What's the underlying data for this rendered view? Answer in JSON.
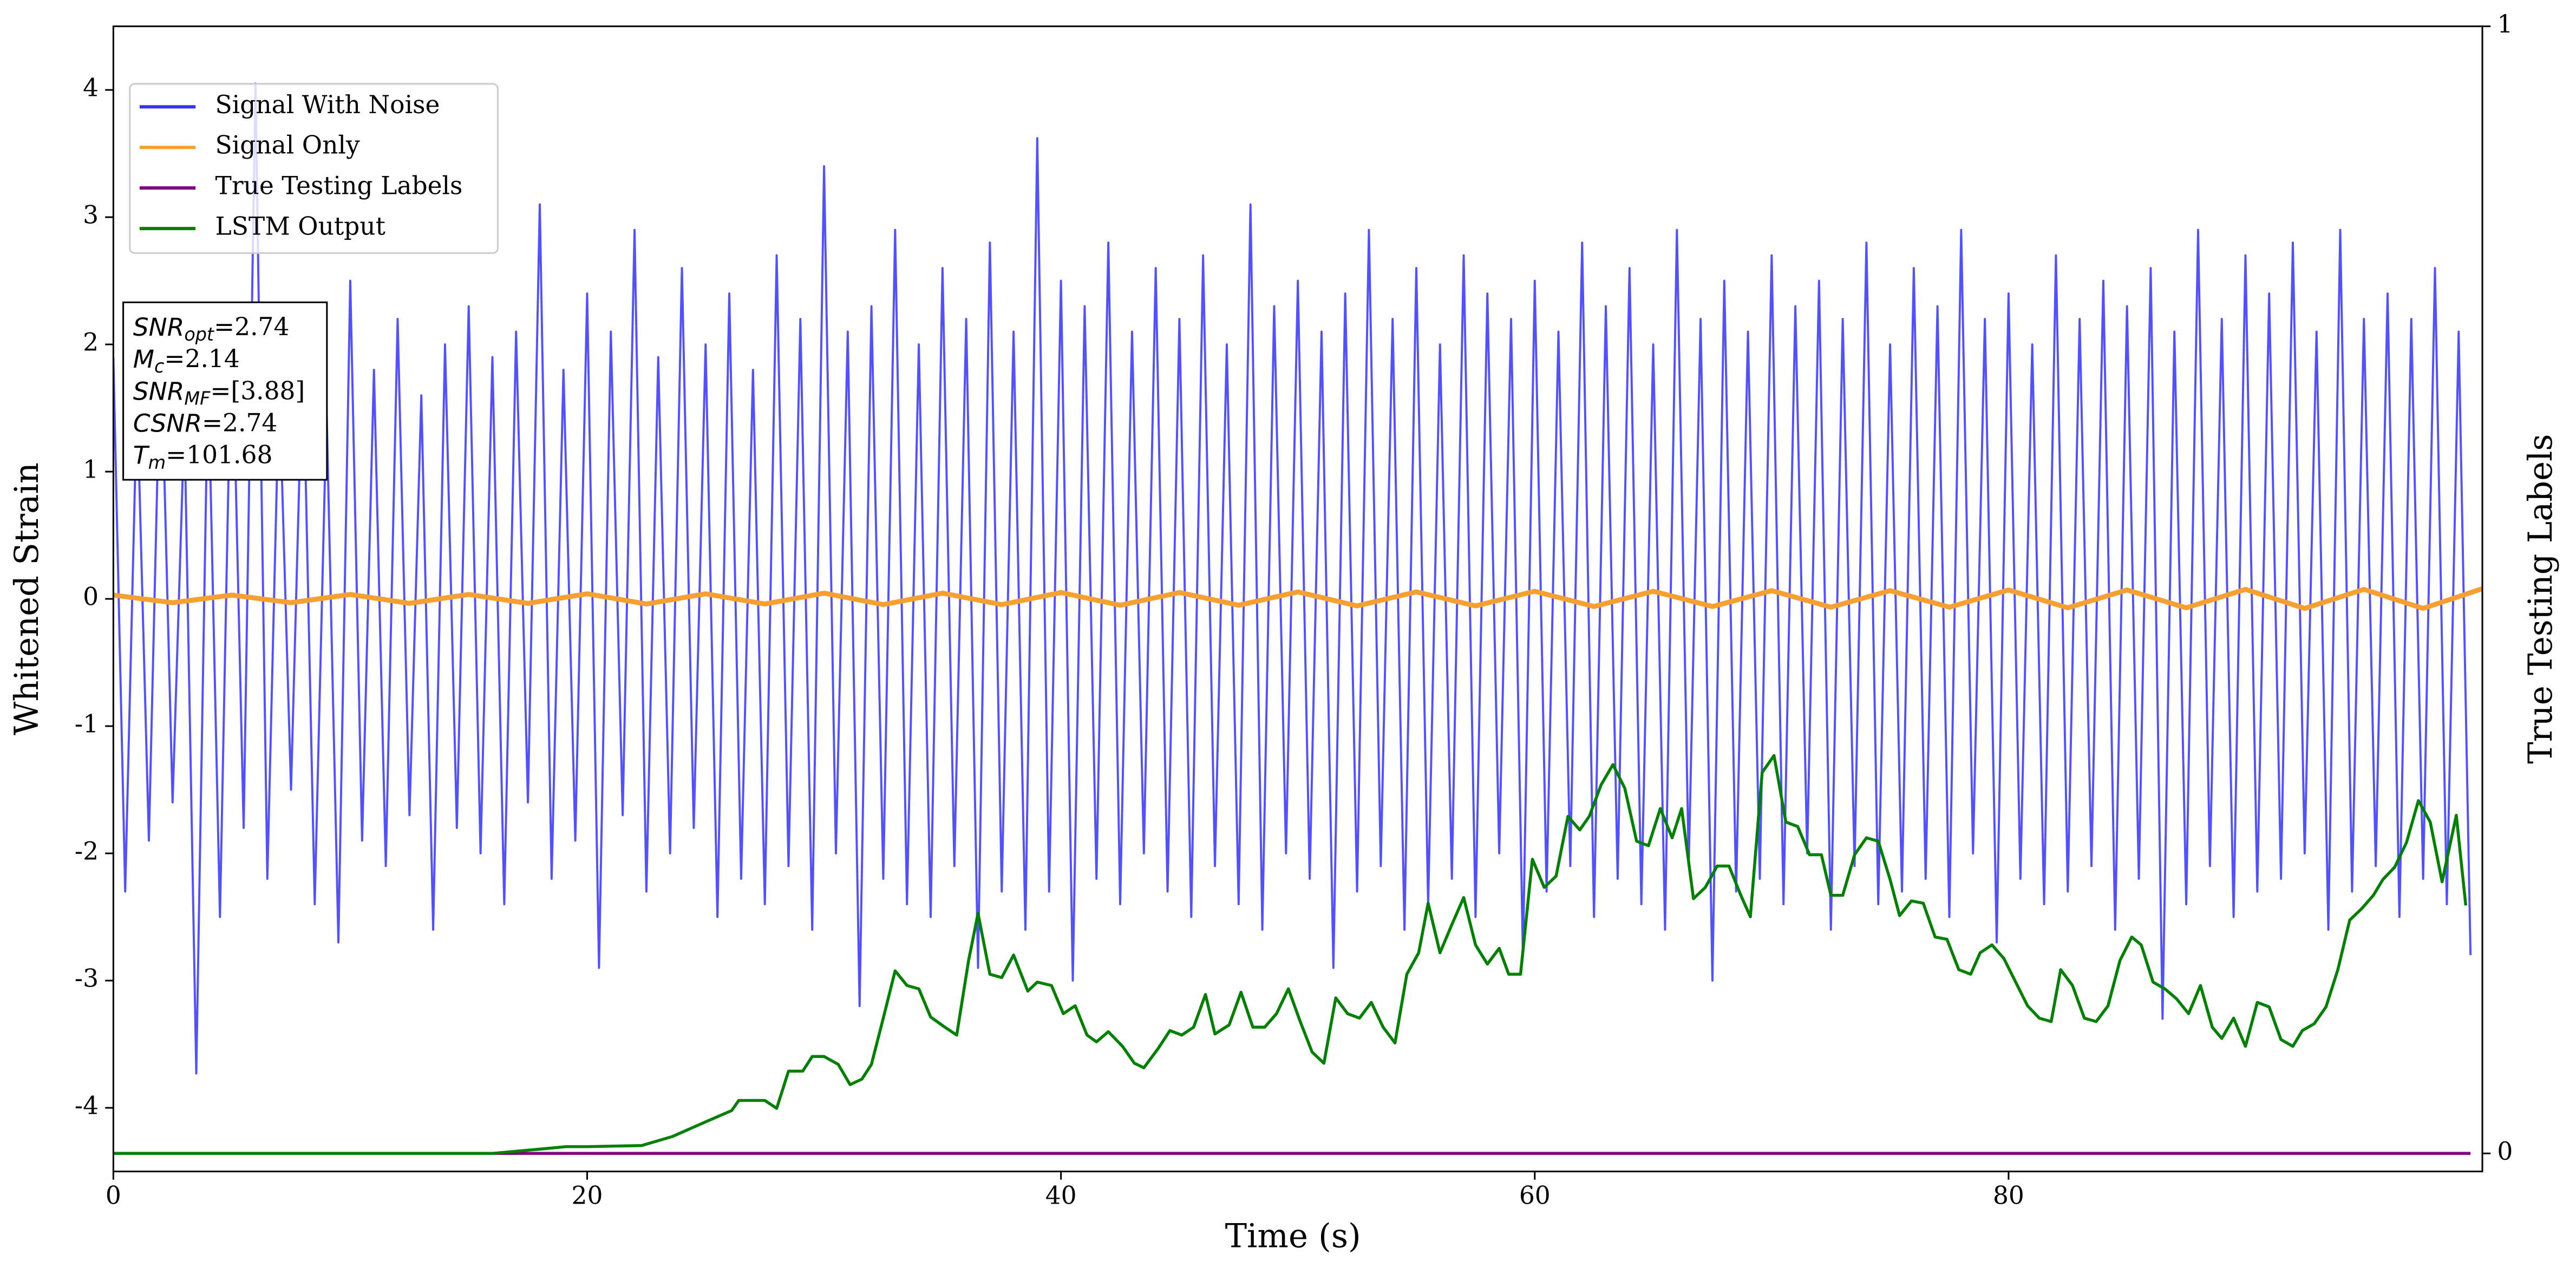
{
  "chart_data": {
    "type": "line",
    "x_label": "Time (s)",
    "y_label": "Whitened Strain",
    "y2_label": "True Testing Labels",
    "xlim": [
      0,
      100
    ],
    "xticks": [
      0,
      20,
      40,
      60,
      80
    ],
    "ylim": [
      -4.5,
      4.5
    ],
    "yticks": [
      -4,
      -3,
      -2,
      -1,
      0,
      1,
      2,
      3,
      4
    ],
    "y2lim": [
      -0.016,
      1
    ],
    "y2ticks": [
      0,
      1
    ],
    "legend": "upper left",
    "grid": false,
    "annotation": [
      {
        "main": "SNR",
        "sub": "opt",
        "rest": "=2.74"
      },
      {
        "main": "M",
        "sub": "c",
        "rest": "=2.14"
      },
      {
        "main": "SNR",
        "sub": "MF",
        "rest": "=[3.88]"
      },
      {
        "main": "CSNR",
        "rest": "=2.74"
      },
      {
        "main": "T",
        "sub": "m",
        "rest": "=101.68"
      }
    ],
    "series": [
      {
        "name": "Signal With Noise",
        "color": "#3333ff",
        "x": [
          0,
          0.5,
          1,
          1.5,
          2,
          2.5,
          3,
          3.5,
          4,
          4.5,
          5,
          5.5,
          6,
          6.5,
          7,
          7.5,
          8,
          8.5,
          9,
          9.5,
          10,
          10.5,
          11,
          11.5,
          12,
          12.5,
          13,
          13.5,
          14,
          14.5,
          15,
          15.5,
          16,
          16.5,
          17,
          17.5,
          18,
          18.5,
          19,
          19.5,
          20,
          20.5,
          21,
          21.5,
          22,
          22.5,
          23,
          23.5,
          24,
          24.5,
          25,
          25.5,
          26,
          26.5,
          27,
          27.5,
          28,
          28.5,
          29,
          29.5,
          30,
          30.5,
          31,
          31.5,
          32,
          32.5,
          33,
          33.5,
          34,
          34.5,
          35,
          35.5,
          36,
          36.5,
          37,
          37.5,
          38,
          38.5,
          39,
          39.5,
          40,
          40.5,
          41,
          41.5,
          42,
          42.5,
          43,
          43.5,
          44,
          44.5,
          45,
          45.5,
          46,
          46.5,
          47,
          47.5,
          48,
          48.5,
          49,
          49.5,
          50,
          50.5,
          51,
          51.5,
          52,
          52.5,
          53,
          53.5,
          54,
          54.5,
          55,
          55.5,
          56,
          56.5,
          57,
          57.5,
          58,
          58.5,
          59,
          59.5,
          60,
          60.5,
          61,
          61.5,
          62,
          62.5,
          63,
          63.5,
          64,
          64.5,
          65,
          65.5,
          66,
          66.5,
          67,
          67.5,
          68,
          68.5,
          69,
          69.5,
          70,
          70.5,
          71,
          71.5,
          72,
          72.5,
          73,
          73.5,
          74,
          74.5,
          75,
          75.5,
          76,
          76.5,
          77,
          77.5,
          78,
          78.5,
          79,
          79.5,
          80,
          80.5,
          81,
          81.5,
          82,
          82.5,
          83,
          83.5,
          84,
          84.5,
          85,
          85.5,
          86,
          86.5,
          87,
          87.5,
          88,
          88.5,
          89,
          89.5,
          90,
          90.5,
          91,
          91.5,
          92,
          92.5,
          93,
          93.5,
          94,
          94.5,
          95,
          95.5,
          96,
          96.5,
          97,
          97.5,
          98,
          98.5,
          99,
          99.5
        ],
        "values": [
          1.9,
          -2.3,
          1.6,
          -1.9,
          2.1,
          -1.6,
          1.4,
          -3.73,
          1.8,
          -2.5,
          2.3,
          -1.8,
          4.05,
          -2.2,
          1.7,
          -1.5,
          2.0,
          -2.4,
          1.5,
          -2.7,
          2.5,
          -1.9,
          1.8,
          -2.1,
          2.2,
          -1.7,
          1.6,
          -2.6,
          2.0,
          -1.8,
          2.3,
          -2.0,
          1.9,
          -2.4,
          2.1,
          -1.6,
          3.1,
          -2.2,
          1.8,
          -1.9,
          2.4,
          -2.9,
          2.1,
          -1.7,
          2.9,
          -2.3,
          1.9,
          -2.0,
          2.6,
          -1.8,
          2.0,
          -2.5,
          2.4,
          -2.2,
          1.8,
          -2.4,
          2.7,
          -2.1,
          2.2,
          -2.6,
          3.4,
          -2.0,
          2.1,
          -3.2,
          2.3,
          -2.2,
          2.9,
          -2.4,
          2.0,
          -2.5,
          2.6,
          -2.1,
          2.2,
          -2.9,
          2.8,
          -2.3,
          2.1,
          -2.6,
          3.62,
          -2.3,
          2.5,
          -3.0,
          2.3,
          -2.2,
          2.8,
          -2.4,
          2.1,
          -2.0,
          2.6,
          -2.3,
          2.2,
          -2.5,
          2.7,
          -2.1,
          2.0,
          -2.4,
          3.1,
          -2.6,
          2.3,
          -2.0,
          2.5,
          -2.2,
          2.1,
          -2.9,
          2.4,
          -2.3,
          2.9,
          -2.1,
          2.2,
          -2.6,
          2.6,
          -2.4,
          2.0,
          -2.2,
          2.7,
          -2.5,
          2.4,
          -2.0,
          2.2,
          -2.8,
          2.5,
          -2.3,
          2.1,
          -2.1,
          2.8,
          -2.5,
          2.3,
          -2.2,
          2.6,
          -2.4,
          2.0,
          -2.6,
          2.9,
          -2.1,
          2.2,
          -3.0,
          2.5,
          -2.3,
          2.1,
          -2.2,
          2.7,
          -2.4,
          2.3,
          -2.0,
          2.5,
          -2.6,
          2.2,
          -2.1,
          2.8,
          -2.4,
          2.0,
          -2.3,
          2.6,
          -2.2,
          2.3,
          -2.5,
          2.9,
          -2.0,
          2.2,
          -2.7,
          2.4,
          -2.2,
          2.0,
          -2.4,
          2.7,
          -2.3,
          2.2,
          -2.1,
          2.5,
          -2.6,
          2.3,
          -2.2,
          2.6,
          -3.3,
          2.1,
          -2.4,
          2.9,
          -2.1,
          2.2,
          -2.5,
          2.7,
          -2.3,
          2.4,
          -2.2,
          2.8,
          -2.0,
          2.1,
          -2.6,
          2.9,
          -2.3,
          2.2,
          -2.1,
          2.4,
          -2.5,
          2.2,
          -2.2,
          2.6,
          -2.4,
          2.1,
          -2.8
        ]
      },
      {
        "name": "Signal Only",
        "color": "#f5a030",
        "x": [
          0,
          2.5,
          5,
          7.5,
          10,
          12.5,
          15,
          17.5,
          20,
          22.5,
          25,
          27.5,
          30,
          32.5,
          35,
          37.5,
          40,
          42.5,
          45,
          47.5,
          50,
          52.5,
          55,
          57.5,
          60,
          62.5,
          65,
          67.5,
          70,
          72.5,
          75,
          77.5,
          80,
          82.5,
          85,
          87.5,
          90,
          92.5,
          95,
          97.5,
          100
        ],
        "values": [
          0.03,
          -0.03,
          0.03,
          -0.03,
          0.035,
          -0.035,
          0.035,
          -0.035,
          0.04,
          -0.04,
          0.04,
          -0.04,
          0.045,
          -0.045,
          0.045,
          -0.045,
          0.05,
          -0.05,
          0.05,
          -0.05,
          0.055,
          -0.055,
          0.055,
          -0.055,
          0.06,
          -0.06,
          0.06,
          -0.06,
          0.065,
          -0.065,
          0.065,
          -0.065,
          0.07,
          -0.07,
          0.07,
          -0.07,
          0.075,
          -0.075,
          0.075,
          -0.075,
          0.08
        ]
      },
      {
        "name": "True Testing Labels",
        "color": "#800080",
        "axis": "y2",
        "x": [
          0,
          99.5
        ],
        "values": [
          0,
          0
        ]
      },
      {
        "name": "LSTM Output",
        "color": "#008000",
        "axis": "y2",
        "x": [
          0,
          16,
          18.1,
          19.1,
          20,
          22.3,
          23.6,
          25,
          26.1,
          26.4,
          27.5,
          28,
          28.5,
          29.1,
          29.5,
          30,
          30.6,
          31.1,
          31.6,
          32,
          32.5,
          33,
          33.5,
          34,
          34.5,
          35.1,
          35.6,
          36.1,
          36.5,
          37,
          37.5,
          38,
          38.6,
          39,
          39.6,
          40.1,
          40.6,
          41.1,
          41.5,
          42,
          42.6,
          43.1,
          43.5,
          44.1,
          44.6,
          45.1,
          45.6,
          46.1,
          46.5,
          47.1,
          47.6,
          48.1,
          48.6,
          49.1,
          49.6,
          50.1,
          50.6,
          51.1,
          51.6,
          52.1,
          52.6,
          53.1,
          53.6,
          54.1,
          54.6,
          55.1,
          55.5,
          56,
          56.5,
          57,
          57.5,
          58,
          58.5,
          58.9,
          59.4,
          59.9,
          60.4,
          60.9,
          61.4,
          61.9,
          62.3,
          62.8,
          63.3,
          63.8,
          64.3,
          64.8,
          65.3,
          65.8,
          66.2,
          66.7,
          67.2,
          67.7,
          68.2,
          68.7,
          69.1,
          69.6,
          70.1,
          70.6,
          71.1,
          71.6,
          72.1,
          72.5,
          73,
          73.5,
          74,
          74.5,
          75,
          75.4,
          75.9,
          76.4,
          76.9,
          77.4,
          77.9,
          78.4,
          78.8,
          79.3,
          79.8,
          80.3,
          80.8,
          81.3,
          81.8,
          82.2,
          82.7,
          83.2,
          83.7,
          84.2,
          84.7,
          85.2,
          85.6,
          86.1,
          86.6,
          87.1,
          87.6,
          88.1,
          88.6,
          89,
          89.5,
          90,
          90.5,
          91,
          91.5,
          92,
          92.4,
          92.9,
          93.4,
          93.9,
          94.4,
          94.9,
          95.4,
          95.8,
          96.3,
          96.8,
          97.3,
          97.8,
          98.3,
          98.9,
          99.3
        ],
        "values": [
          0,
          0,
          0.004,
          0.006,
          0.006,
          0.007,
          0.015,
          0.028,
          0.038,
          0.047,
          0.047,
          0.04,
          0.073,
          0.073,
          0.086,
          0.086,
          0.079,
          0.061,
          0.066,
          0.079,
          0.12,
          0.162,
          0.149,
          0.146,
          0.121,
          0.112,
          0.105,
          0.171,
          0.213,
          0.159,
          0.156,
          0.176,
          0.144,
          0.152,
          0.149,
          0.124,
          0.131,
          0.105,
          0.099,
          0.108,
          0.095,
          0.08,
          0.076,
          0.093,
          0.109,
          0.105,
          0.112,
          0.141,
          0.106,
          0.114,
          0.143,
          0.112,
          0.112,
          0.124,
          0.146,
          0.117,
          0.09,
          0.08,
          0.138,
          0.124,
          0.12,
          0.134,
          0.112,
          0.098,
          0.159,
          0.178,
          0.222,
          0.178,
          0.203,
          0.227,
          0.185,
          0.168,
          0.182,
          0.159,
          0.159,
          0.261,
          0.236,
          0.246,
          0.299,
          0.287,
          0.299,
          0.327,
          0.345,
          0.324,
          0.277,
          0.273,
          0.306,
          0.28,
          0.306,
          0.226,
          0.236,
          0.255,
          0.255,
          0.229,
          0.21,
          0.338,
          0.353,
          0.294,
          0.29,
          0.265,
          0.265,
          0.229,
          0.229,
          0.265,
          0.28,
          0.277,
          0.243,
          0.211,
          0.224,
          0.222,
          0.192,
          0.19,
          0.163,
          0.159,
          0.178,
          0.185,
          0.173,
          0.152,
          0.131,
          0.12,
          0.117,
          0.163,
          0.149,
          0.12,
          0.117,
          0.131,
          0.171,
          0.192,
          0.185,
          0.152,
          0.146,
          0.137,
          0.124,
          0.149,
          0.112,
          0.102,
          0.12,
          0.095,
          0.134,
          0.13,
          0.101,
          0.095,
          0.109,
          0.115,
          0.13,
          0.163,
          0.207,
          0.217,
          0.229,
          0.243,
          0.254,
          0.276,
          0.313,
          0.294,
          0.241,
          0.3,
          0.22
        ]
      }
    ]
  }
}
